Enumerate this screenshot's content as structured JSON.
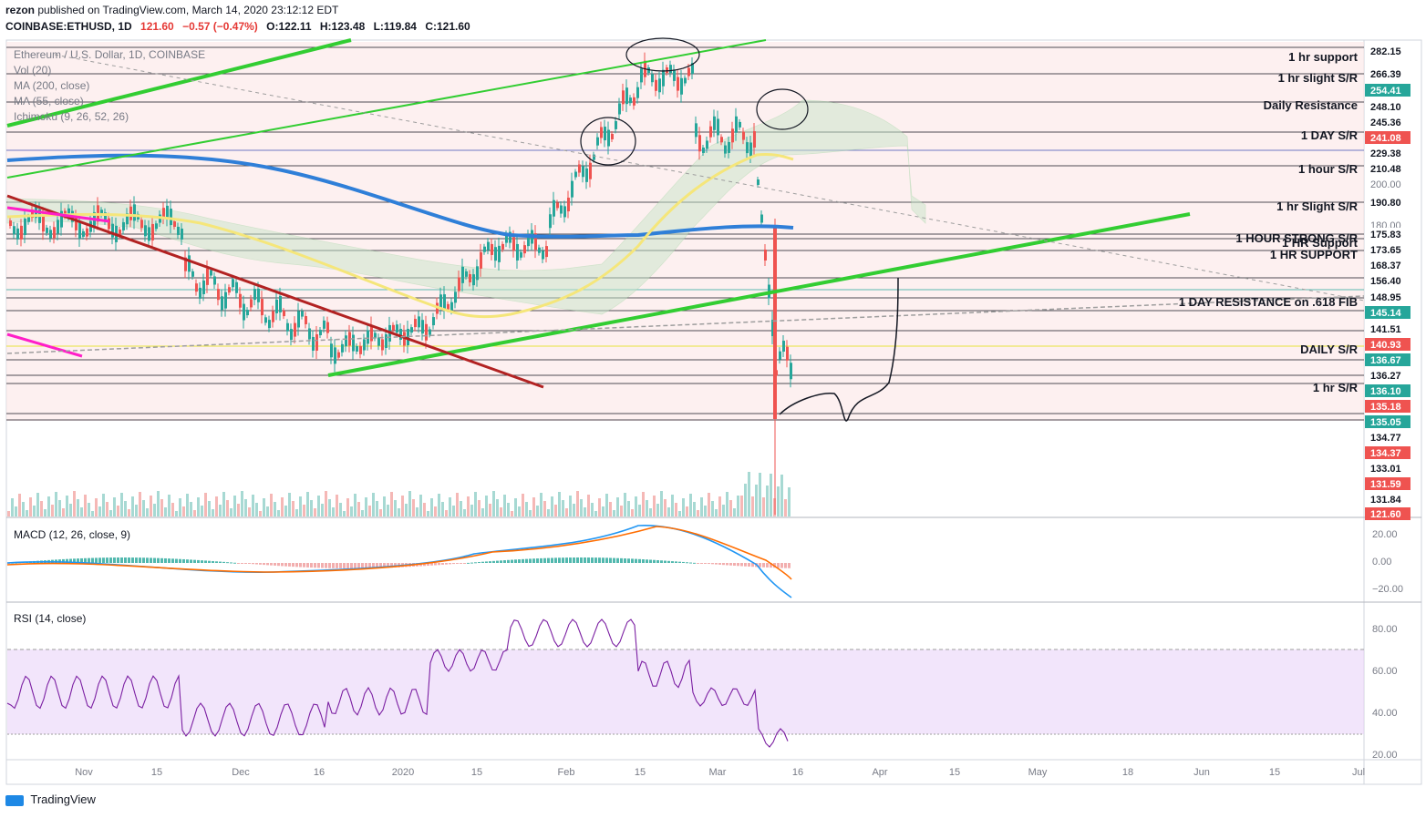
{
  "header": {
    "publisher": "rezon",
    "published_text": "published on TradingView.com, March 14, 2020 23:12:12 EDT",
    "symbol": "COINBASE:ETHUSD, 1D",
    "last": "121.60",
    "change": "−0.57 (−0.47%)",
    "open": "O:122.11",
    "high": "H:123.48",
    "low": "L:119.84",
    "close": "C:121.60"
  },
  "legend": [
    "Ethereum / U.S. Dollar, 1D, COINBASE",
    "Vol (20)",
    "MA (200, close)",
    "MA (55, close)",
    "Ichimoku (9, 26, 52, 26)"
  ],
  "macd_title": "MACD (12, 26, close, 9)",
  "rsi_title": "RSI (14, close)",
  "footer_brand": "TradingView",
  "colors": {
    "green_line": "#32cd32",
    "red_line": "#b22222",
    "ma200": "#2f7fd8",
    "ma55": "#f5e67a",
    "up": "#26a69a",
    "down": "#ef5350"
  },
  "chart_data": [
    {
      "type": "line",
      "name": "price",
      "title": "Ethereum / U.S. Dollar, 1D, COINBASE",
      "x_tick_labels": [
        "Nov",
        "15",
        "Dec",
        "16",
        "2020",
        "15",
        "Feb",
        "15",
        "Mar",
        "16",
        "Apr",
        "15",
        "May",
        "18",
        "Jun",
        "15",
        "Jul"
      ],
      "x_tick_positions": [
        92,
        172,
        264,
        350,
        442,
        523,
        621,
        702,
        787,
        875,
        965,
        1047,
        1138,
        1237,
        1318,
        1398,
        1490
      ],
      "price_labels": [
        {
          "v": "282.15",
          "c": "#131722",
          "f": "#ffffff"
        },
        {
          "v": "266.39",
          "c": "#131722",
          "f": "#ffffff"
        },
        {
          "v": "254.41",
          "c": "#ffffff",
          "f": "#26a69a"
        },
        {
          "v": "248.10",
          "c": "#131722",
          "f": "#ffffff"
        },
        {
          "v": "245.36",
          "c": "#131722",
          "f": "#ffffff"
        },
        {
          "v": "241.08",
          "c": "#ffffff",
          "f": "#ef5350"
        },
        {
          "v": "229.38",
          "c": "#131722",
          "f": "#ffffff"
        },
        {
          "v": "210.48",
          "c": "#131722",
          "f": "#ffffff"
        },
        {
          "v": "200.00",
          "c": "#787b86",
          "f": "none"
        },
        {
          "v": "190.80",
          "c": "#131722",
          "f": "#ffffff"
        },
        {
          "v": "180.00",
          "c": "#787b86",
          "f": "none"
        },
        {
          "v": "175.83",
          "c": "#131722",
          "f": "#ffffff"
        },
        {
          "v": "173.65",
          "c": "#131722",
          "f": "#ffffff"
        },
        {
          "v": "168.37",
          "c": "#131722",
          "f": "#ffffff"
        },
        {
          "v": "156.40",
          "c": "#131722",
          "f": "#ffffff"
        },
        {
          "v": "148.95",
          "c": "#131722",
          "f": "#ffffff"
        },
        {
          "v": "145.14",
          "c": "#ffffff",
          "f": "#26a69a"
        },
        {
          "v": "141.51",
          "c": "#131722",
          "f": "#ffffff"
        },
        {
          "v": "140.93",
          "c": "#ffffff",
          "f": "#ef5350"
        },
        {
          "v": "136.67",
          "c": "#ffffff",
          "f": "#26a69a"
        },
        {
          "v": "136.27",
          "c": "#131722",
          "f": "#ffffff"
        },
        {
          "v": "136.10",
          "c": "#ffffff",
          "f": "#26a69a"
        },
        {
          "v": "135.18",
          "c": "#ffffff",
          "f": "#ef5350"
        },
        {
          "v": "135.05",
          "c": "#ffffff",
          "f": "#26a69a"
        },
        {
          "v": "134.77",
          "c": "#131722",
          "f": "#ffffff"
        },
        {
          "v": "134.37",
          "c": "#ffffff",
          "f": "#ef5350"
        },
        {
          "v": "133.01",
          "c": "#131722",
          "f": "#ffffff"
        },
        {
          "v": "131.59",
          "c": "#ffffff",
          "f": "#ef5350"
        },
        {
          "v": "131.84",
          "c": "#131722",
          "f": "#ffffff"
        },
        {
          "v": "121.60",
          "c": "#ffffff",
          "f": "#ef5350"
        }
      ],
      "price_label_y": [
        56,
        81,
        99,
        117,
        134,
        151,
        168,
        185,
        202,
        222,
        247,
        257,
        274,
        291,
        308,
        326,
        343,
        361,
        378,
        395,
        412,
        429,
        446,
        463,
        480,
        497,
        514,
        531,
        548,
        564
      ],
      "annotations": [
        {
          "text": "1 hr support",
          "y": 67
        },
        {
          "text": "1 hr slight S/R",
          "y": 90
        },
        {
          "text": "Daily Resistance",
          "y": 120
        },
        {
          "text": "1 DAY S/R",
          "y": 153
        },
        {
          "text": "1 hour S/R",
          "y": 190
        },
        {
          "text": "1 hr Slight S/R",
          "y": 231
        },
        {
          "text": "1 HOUR STRONG S/R",
          "y": 266
        },
        {
          "text": "1 HR Support",
          "y": 271
        },
        {
          "text": "1 HR SUPPORT",
          "y": 284
        },
        {
          "text": "1 DAY RESISTANCE on .618 FIB",
          "y": 336
        },
        {
          "text": "DAILY S/R",
          "y": 388
        },
        {
          "text": "1 hr S/R",
          "y": 430
        }
      ]
    },
    {
      "type": "bar",
      "name": "macd",
      "title": "MACD (12, 26, close, 9)",
      "y_ticks": [
        "20.00",
        "0.00",
        "−20.00"
      ]
    },
    {
      "type": "line",
      "name": "rsi",
      "title": "RSI (14, close)",
      "y_ticks": [
        "80.00",
        "60.00",
        "40.00",
        "20.00"
      ],
      "upper_band": 70,
      "lower_band": 30
    }
  ]
}
